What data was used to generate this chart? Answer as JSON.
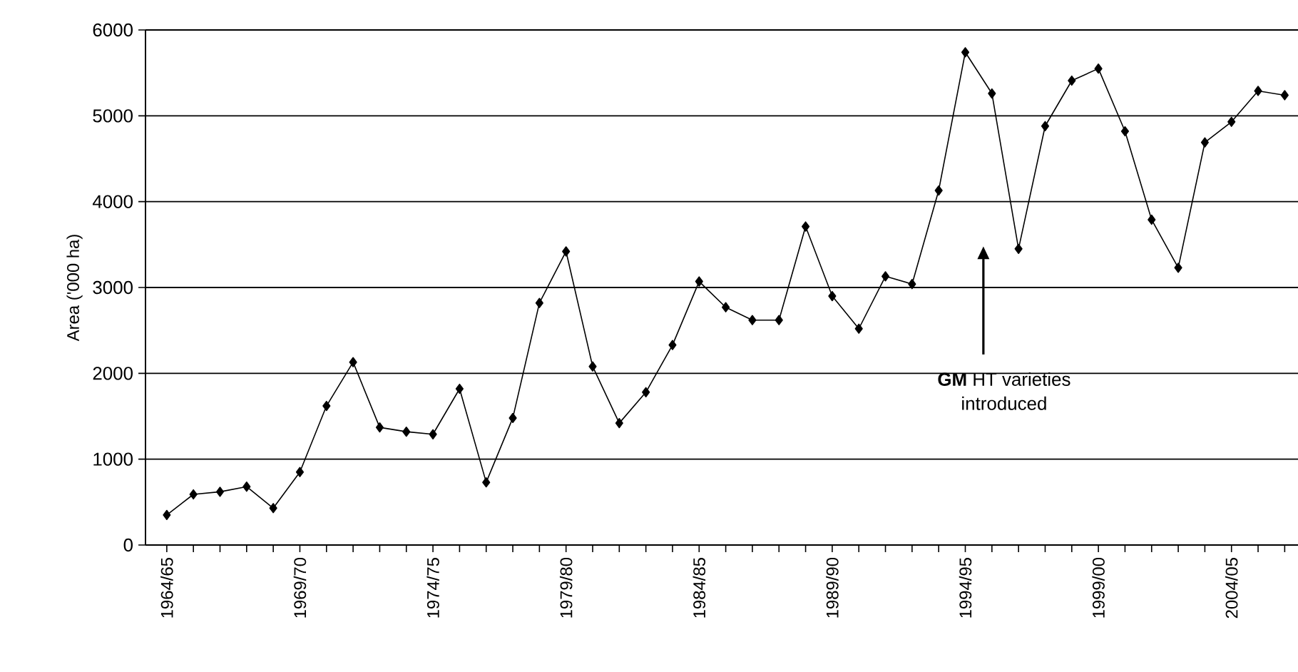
{
  "chart_data": {
    "type": "line",
    "ylabel": "Area ('000 ha)",
    "categories": [
      "1964/65",
      null,
      null,
      null,
      null,
      "1969/70",
      null,
      null,
      null,
      null,
      "1974/75",
      null,
      null,
      null,
      null,
      "1979/80",
      null,
      null,
      null,
      null,
      "1984/85",
      null,
      null,
      null,
      null,
      "1989/90",
      null,
      null,
      null,
      null,
      "1994/95",
      null,
      null,
      null,
      null,
      "1999/00",
      null,
      null,
      null,
      null,
      "2004/05",
      null,
      null
    ],
    "series": [
      {
        "color": "#000000",
        "values": [
          350,
          590,
          620,
          680,
          430,
          850,
          1620,
          2130,
          1370,
          1320,
          1290,
          1820,
          730,
          1480,
          2820,
          3420,
          2080,
          1420,
          1780,
          2330,
          3070,
          2770,
          2620,
          2620,
          3710,
          2900,
          2520,
          3130,
          3040,
          4130,
          5740,
          5260,
          3450,
          4880,
          5410,
          5550,
          4820,
          3790,
          3230,
          4690,
          4930,
          5290,
          5240
        ]
      }
    ],
    "ylim": [
      0,
      6000
    ],
    "yticks": [
      0,
      1000,
      2000,
      3000,
      4000,
      5000,
      6000
    ],
    "grid": "y",
    "marker": "diamond",
    "line_style": "solid",
    "annotations": [
      "**GM** HT varieties introduced"
    ]
  }
}
